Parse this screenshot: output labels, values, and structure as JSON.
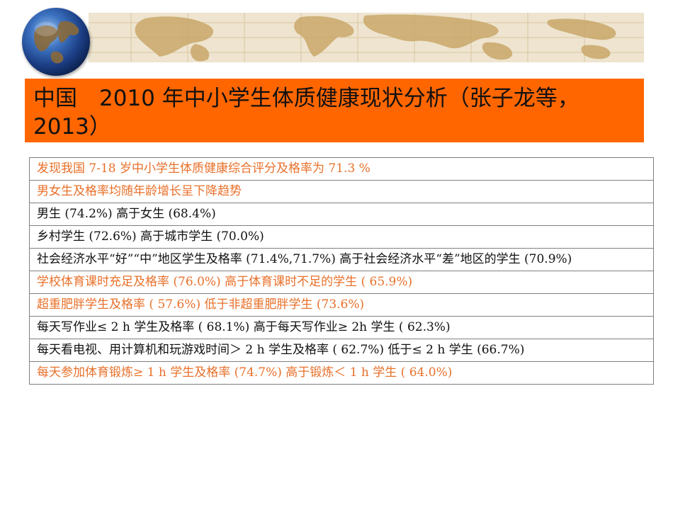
{
  "title": {
    "text": "中国　2010 年中小学生体质健康现状分析（张子龙等，2013）"
  },
  "rows": [
    {
      "text": "发现我国 7-18 岁中小学生体质健康综合评分及格率为 71.3 %",
      "style": "highlight"
    },
    {
      "text": "男女生及格率均随年龄增长呈下降趋势",
      "style": "highlight"
    },
    {
      "text": "男生 (74.2%)  高于女生 (68.4%)",
      "style": "dark"
    },
    {
      "text": "乡村学生 (72.6%)  高于城市学生 (70.0%)",
      "style": "dark"
    },
    {
      "text": "社会经济水平“好”“中”地区学生及格率 (71.4%,71.7%)  高于社会经济水平“差”地区的学生 (70.9%)",
      "style": "dark"
    },
    {
      "text": "学校体育课时充足及格率 (76.0%)  高于体育课时不足的学生 ( 65.9%)",
      "style": "highlight"
    },
    {
      "text": "超重肥胖学生及格率 ( 57.6%)  低于非超重肥胖学生 (73.6%)",
      "style": "highlight"
    },
    {
      "text": "每天写作业≤ 2 h  学生及格率 ( 68.1%)  高于每天写作业≥ 2h  学生 ( 62.3%)",
      "style": "dark"
    },
    {
      "text": "每天看电视、用计算机和玩游戏时间＞ 2 h  学生及格率 ( 62.7%)  低于≤ 2 h  学生 (66.7%)",
      "style": "dark"
    },
    {
      "text": "每天参加体育锻炼≥ 1 h 学生及格率 (74.7%)  高于锻炼＜ 1 h 学生 ( 64.0%)",
      "style": "highlight"
    }
  ],
  "colors": {
    "title_bar": "#ff6600",
    "highlight_text": "#e8702a",
    "dark_text": "#111111",
    "border": "#7f7f7f",
    "banner": "#eee4cf"
  },
  "decorations": {
    "banner": "world-map-banner",
    "globe": "globe-icon"
  }
}
